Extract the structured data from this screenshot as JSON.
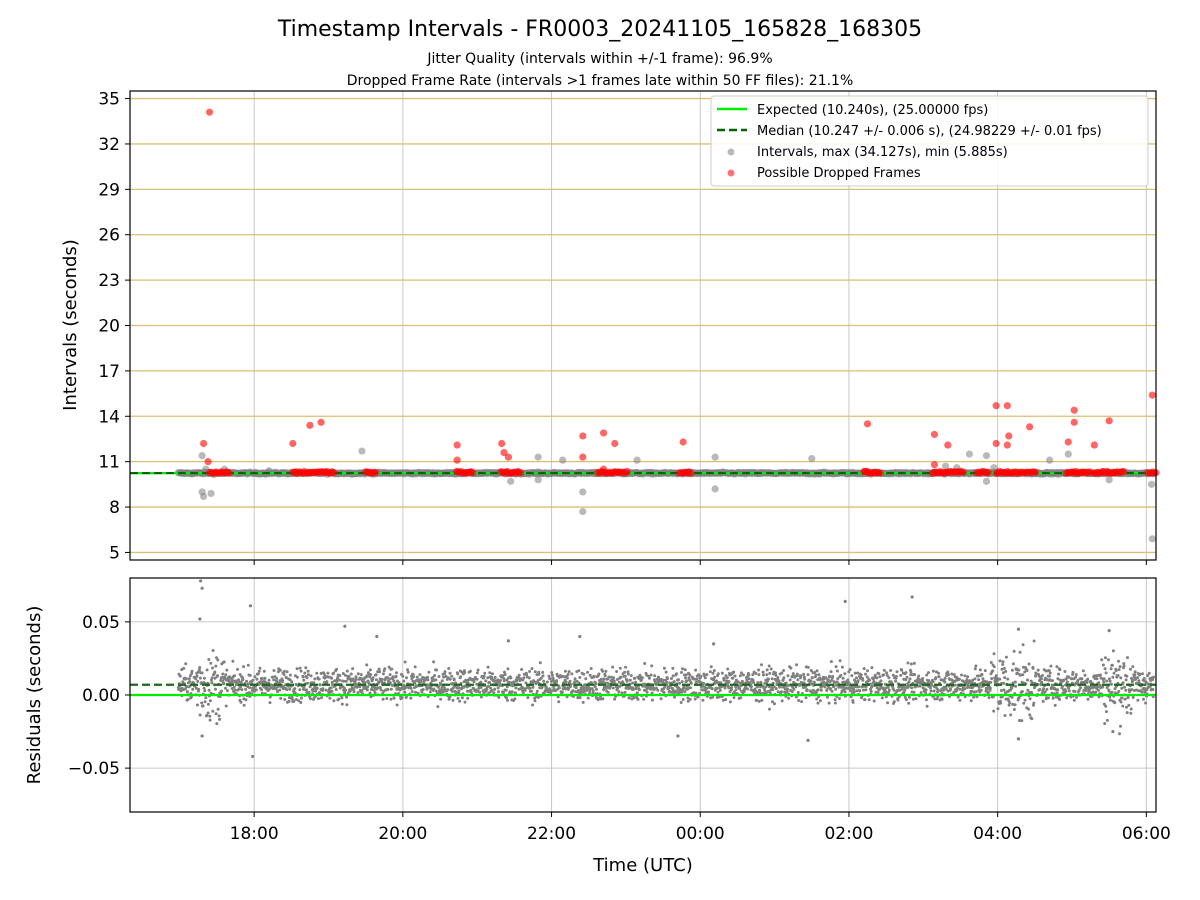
{
  "chart_data": [
    {
      "type": "scatter",
      "panel": "top",
      "title": "Timestamp Intervals - FR0003_20241105_165828_168305",
      "subtitle_lines": [
        "Jitter Quality (intervals within +/-1 frame): 96.9%",
        "Dropped Frame Rate (intervals >1 frames late within 50 FF files): 21.1%"
      ],
      "xlabel": "",
      "ylabel": "Intervals (seconds)",
      "xlim_hours": [
        16.33,
        30.13
      ],
      "ylim": [
        4.5,
        35.5
      ],
      "yticks": [
        5,
        8,
        11,
        14,
        17,
        20,
        23,
        26,
        29,
        32,
        35
      ],
      "ytick_labels": [
        "5",
        "8",
        "11",
        "14",
        "17",
        "20",
        "23",
        "26",
        "29",
        "32",
        "35"
      ],
      "grid": true,
      "legend_position": "top-right",
      "legend": [
        "Expected (10.240s), (25.00000 fps)",
        "Median (10.247 +/- 0.006 s), (24.98229 +/- 0.01 fps)",
        "Intervals, max (34.127s), min (5.885s)",
        "Possible Dropped Frames"
      ],
      "expected_value": 10.24,
      "median_value": 10.247,
      "interval_range_hours": [
        16.98,
        30.1
      ],
      "interval_baseline": 10.24,
      "intervals_outliers": [
        {
          "x": 17.3,
          "y": 11.4
        },
        {
          "x": 17.3,
          "y": 9.0
        },
        {
          "x": 17.32,
          "y": 8.7
        },
        {
          "x": 17.42,
          "y": 8.9
        },
        {
          "x": 17.35,
          "y": 10.5
        },
        {
          "x": 17.6,
          "y": 10.5
        },
        {
          "x": 18.2,
          "y": 10.4
        },
        {
          "x": 19.45,
          "y": 11.7
        },
        {
          "x": 21.45,
          "y": 9.7
        },
        {
          "x": 21.82,
          "y": 11.3
        },
        {
          "x": 21.82,
          "y": 9.8
        },
        {
          "x": 22.15,
          "y": 11.1
        },
        {
          "x": 22.42,
          "y": 9.0
        },
        {
          "x": 22.42,
          "y": 7.7
        },
        {
          "x": 23.15,
          "y": 11.1
        },
        {
          "x": 24.2,
          "y": 11.3
        },
        {
          "x": 24.2,
          "y": 9.2
        },
        {
          "x": 25.5,
          "y": 11.2
        },
        {
          "x": 27.45,
          "y": 10.6
        },
        {
          "x": 27.62,
          "y": 11.5
        },
        {
          "x": 27.85,
          "y": 11.4
        },
        {
          "x": 27.85,
          "y": 9.7
        },
        {
          "x": 27.95,
          "y": 10.6
        },
        {
          "x": 28.7,
          "y": 11.1
        },
        {
          "x": 28.95,
          "y": 11.5
        },
        {
          "x": 29.5,
          "y": 9.8
        },
        {
          "x": 30.07,
          "y": 9.5
        },
        {
          "x": 30.08,
          "y": 5.9
        },
        {
          "x": 27.3,
          "y": 10.7
        }
      ],
      "dropped_frames": [
        {
          "x": 17.4,
          "y": 34.1
        },
        {
          "x": 17.32,
          "y": 12.2
        },
        {
          "x": 17.38,
          "y": 11.0
        },
        {
          "x": 18.52,
          "y": 12.2
        },
        {
          "x": 18.75,
          "y": 13.4
        },
        {
          "x": 18.9,
          "y": 13.6
        },
        {
          "x": 20.73,
          "y": 12.1
        },
        {
          "x": 20.73,
          "y": 11.1
        },
        {
          "x": 21.33,
          "y": 12.2
        },
        {
          "x": 21.36,
          "y": 11.6
        },
        {
          "x": 21.42,
          "y": 11.3
        },
        {
          "x": 22.42,
          "y": 12.7
        },
        {
          "x": 22.42,
          "y": 11.3
        },
        {
          "x": 22.7,
          "y": 12.9
        },
        {
          "x": 22.85,
          "y": 12.2
        },
        {
          "x": 22.7,
          "y": 10.5
        },
        {
          "x": 23.77,
          "y": 12.3
        },
        {
          "x": 26.25,
          "y": 13.5
        },
        {
          "x": 27.15,
          "y": 12.8
        },
        {
          "x": 27.15,
          "y": 10.8
        },
        {
          "x": 27.33,
          "y": 12.1
        },
        {
          "x": 27.98,
          "y": 14.7
        },
        {
          "x": 27.98,
          "y": 12.2
        },
        {
          "x": 28.13,
          "y": 14.7
        },
        {
          "x": 28.15,
          "y": 12.7
        },
        {
          "x": 28.13,
          "y": 12.1
        },
        {
          "x": 28.43,
          "y": 13.3
        },
        {
          "x": 28.95,
          "y": 12.3
        },
        {
          "x": 29.03,
          "y": 14.4
        },
        {
          "x": 29.03,
          "y": 13.6
        },
        {
          "x": 29.3,
          "y": 12.1
        },
        {
          "x": 29.5,
          "y": 13.7
        },
        {
          "x": 30.08,
          "y": 15.4
        }
      ],
      "dropped_frame_clusters": [
        [
          17.4,
          17.68
        ],
        [
          18.52,
          19.08
        ],
        [
          19.5,
          19.65
        ],
        [
          20.72,
          20.95
        ],
        [
          21.32,
          21.6
        ],
        [
          22.62,
          23.02
        ],
        [
          23.72,
          23.88
        ],
        [
          26.2,
          26.42
        ],
        [
          27.12,
          27.55
        ],
        [
          27.72,
          27.88
        ],
        [
          27.98,
          28.52
        ],
        [
          28.92,
          29.25
        ],
        [
          29.3,
          29.7
        ],
        [
          30.02,
          30.13
        ]
      ]
    },
    {
      "type": "scatter",
      "panel": "bottom",
      "xlabel": "Time (UTC)",
      "ylabel": "Residuals (seconds)",
      "xlim_hours": [
        16.33,
        30.13
      ],
      "ylim": [
        -0.08,
        0.08
      ],
      "yticks": [
        -0.05,
        0.0,
        0.05
      ],
      "ytick_labels": [
        "−0.05",
        "0.00",
        "0.05"
      ],
      "xticks_hours": [
        18,
        20,
        22,
        24,
        26,
        28,
        30
      ],
      "xtick_labels": [
        "18:00",
        "20:00",
        "22:00",
        "00:00",
        "02:00",
        "04:00",
        "06:00"
      ],
      "grid": true,
      "expected_line": 0.0,
      "median_line": 0.007,
      "residual_noise_std": 0.0055,
      "residual_outliers": [
        {
          "x": 17.28,
          "y": 0.078
        },
        {
          "x": 17.3,
          "y": 0.073
        },
        {
          "x": 17.27,
          "y": 0.052
        },
        {
          "x": 17.3,
          "y": -0.028
        },
        {
          "x": 17.95,
          "y": 0.061
        },
        {
          "x": 17.98,
          "y": -0.042
        },
        {
          "x": 19.22,
          "y": 0.047
        },
        {
          "x": 19.65,
          "y": 0.04
        },
        {
          "x": 21.42,
          "y": 0.037
        },
        {
          "x": 22.38,
          "y": 0.04
        },
        {
          "x": 23.7,
          "y": -0.028
        },
        {
          "x": 24.18,
          "y": 0.035
        },
        {
          "x": 25.45,
          "y": -0.031
        },
        {
          "x": 25.95,
          "y": 0.064
        },
        {
          "x": 26.85,
          "y": 0.067
        },
        {
          "x": 28.28,
          "y": 0.045
        },
        {
          "x": 28.28,
          "y": -0.03
        },
        {
          "x": 29.5,
          "y": 0.044
        },
        {
          "x": 29.55,
          "y": -0.025
        }
      ]
    }
  ],
  "colors": {
    "expected": "#00ee00",
    "median": "#006400",
    "intervals": "#808080",
    "dropped": "#ff0000",
    "hgrid_top": "#d9bf73",
    "grid": "#c8c8c8",
    "residual_median": "#1a6b1a"
  }
}
